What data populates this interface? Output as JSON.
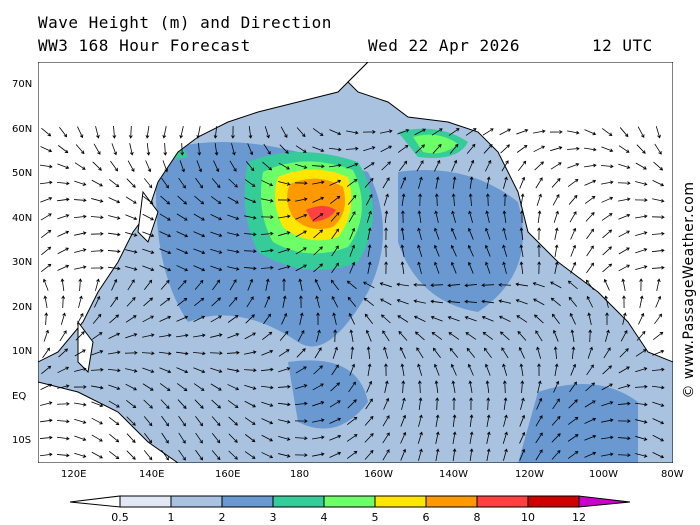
{
  "header": {
    "title": "Wave Height (m) and Direction",
    "model": "WW3 168 Hour Forecast",
    "date": "Wed 22 Apr 2026",
    "time": "12 UTC"
  },
  "map": {
    "lat_labels": [
      "70N",
      "60N",
      "50N",
      "40N",
      "30N",
      "20N",
      "10N",
      "EQ",
      "10S"
    ],
    "lon_labels": [
      "120E",
      "140E",
      "160E",
      "180",
      "160W",
      "140W",
      "120W",
      "100W",
      "80W"
    ]
  },
  "legend": {
    "ticks": [
      "0.5",
      "1",
      "2",
      "3",
      "4",
      "5",
      "6",
      "8",
      "10",
      "12"
    ],
    "colors": [
      "#e1e8f4",
      "#a9c2e0",
      "#6a99d2",
      "#35cc99",
      "#6cff68",
      "#ffe600",
      "#ff9900",
      "#ff4040",
      "#cc0000"
    ],
    "over_color": "#cc00cc"
  },
  "watermark": "© www.PassageWeather.com"
}
